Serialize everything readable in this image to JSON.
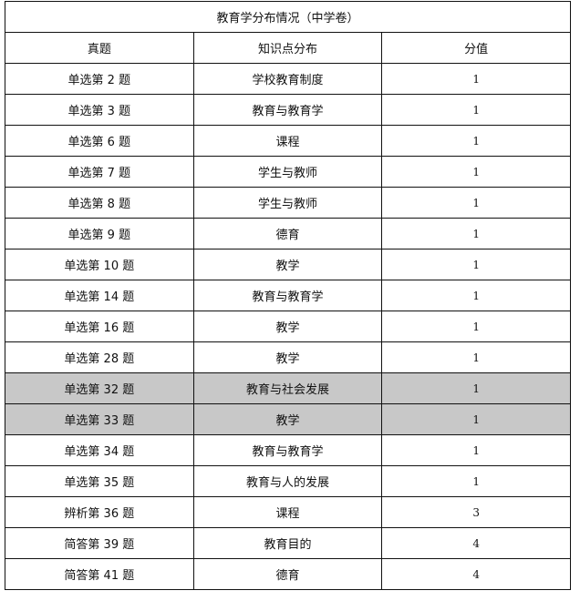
{
  "title": "教育学分布情况（中学卷）",
  "headers": [
    "真题",
    "知识点分布",
    "分值"
  ],
  "highlight_color": "#c8c8c8",
  "rows": [
    {
      "q": "单选第 2 题",
      "topic": "学校教育制度",
      "score": "1",
      "highlighted": false
    },
    {
      "q": "单选第 3 题",
      "topic": "教育与教育学",
      "score": "1",
      "highlighted": false
    },
    {
      "q": "单选第 6 题",
      "topic": "课程",
      "score": "1",
      "highlighted": false
    },
    {
      "q": "单选第 7 题",
      "topic": "学生与教师",
      "score": "1",
      "highlighted": false
    },
    {
      "q": "单选第 8 题",
      "topic": "学生与教师",
      "score": "1",
      "highlighted": false
    },
    {
      "q": "单选第 9 题",
      "topic": "德育",
      "score": "1",
      "highlighted": false
    },
    {
      "q": "单选第 10 题",
      "topic": "教学",
      "score": "1",
      "highlighted": false
    },
    {
      "q": "单选第 14 题",
      "topic": "教育与教育学",
      "score": "1",
      "highlighted": false
    },
    {
      "q": "单选第 16 题",
      "topic": "教学",
      "score": "1",
      "highlighted": false
    },
    {
      "q": "单选第 28 题",
      "topic": "教学",
      "score": "1",
      "highlighted": false
    },
    {
      "q": "单选第 32 题",
      "topic": "教育与社会发展",
      "score": "1",
      "highlighted": true
    },
    {
      "q": "单选第 33 题",
      "topic": "教学",
      "score": "1",
      "highlighted": true
    },
    {
      "q": "单选第 34 题",
      "topic": "教育与教育学",
      "score": "1",
      "highlighted": false
    },
    {
      "q": "单选第 35 题",
      "topic": "教育与人的发展",
      "score": "1",
      "highlighted": false
    },
    {
      "q": "辨析第 36 题",
      "topic": "课程",
      "score": "3",
      "highlighted": false
    },
    {
      "q": "简答第 39 题",
      "topic": "教育目的",
      "score": "4",
      "highlighted": false
    },
    {
      "q": "简答第 41 题",
      "topic": "德育",
      "score": "4",
      "highlighted": false
    }
  ]
}
